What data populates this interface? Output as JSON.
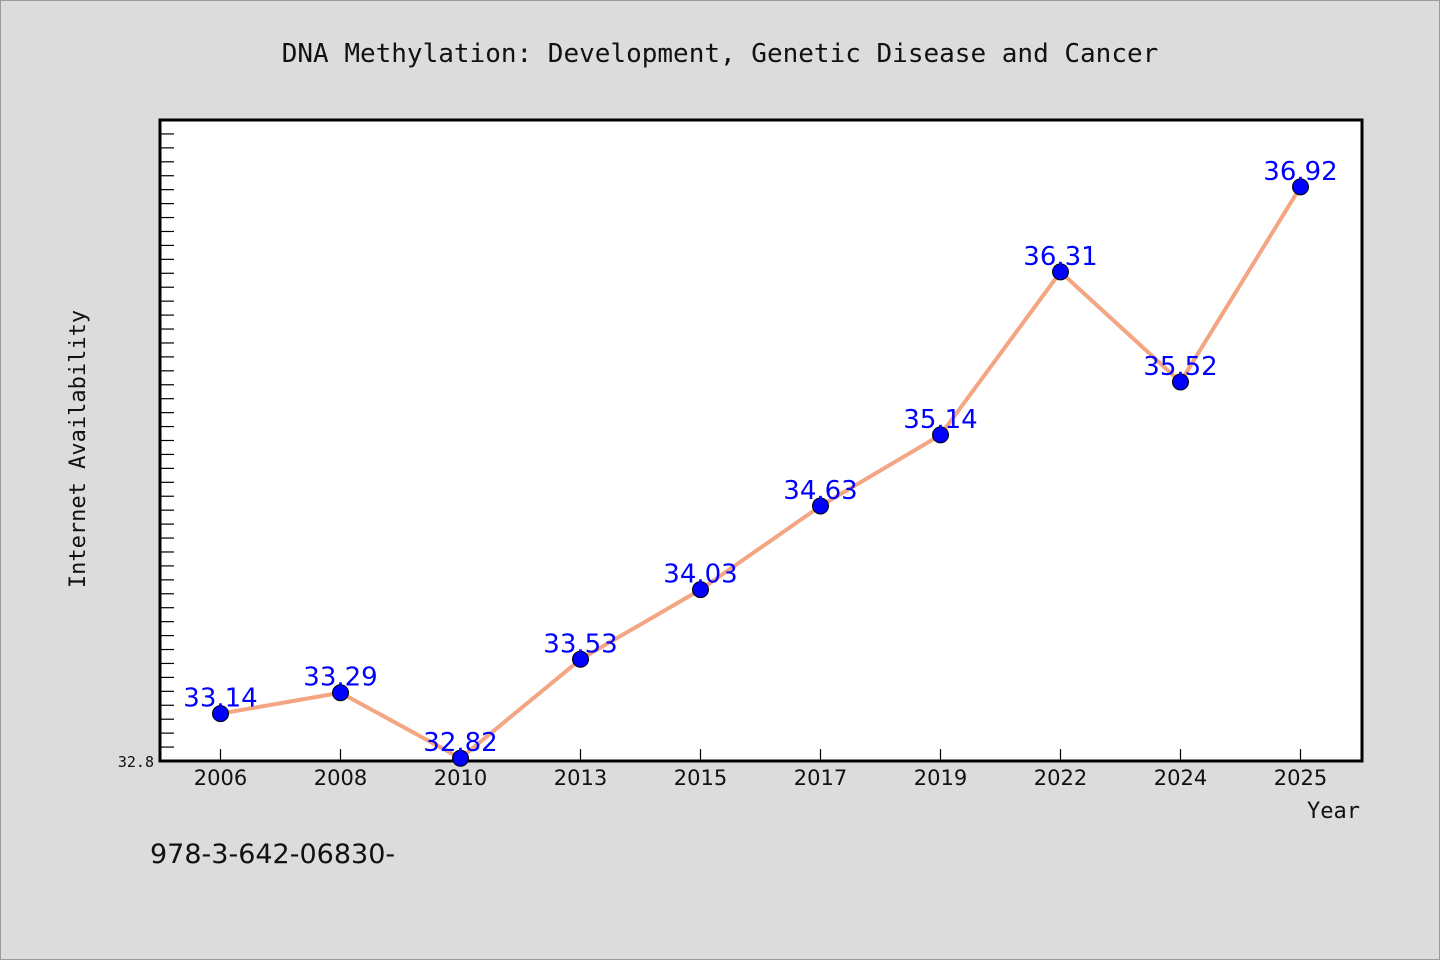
{
  "chart_data": {
    "type": "line",
    "title": "DNA Methylation: Development, Genetic Disease and Cancer",
    "xlabel": "Year",
    "ylabel": "Internet Availability",
    "categories": [
      "2006",
      "2008",
      "2010",
      "2013",
      "2015",
      "2017",
      "2019",
      "2022",
      "2024",
      "2025"
    ],
    "series": [
      {
        "values": [
          33.14,
          33.29,
          32.82,
          33.53,
          34.03,
          34.63,
          35.14,
          36.31,
          35.52,
          36.92
        ],
        "data_labels": [
          "33.14",
          "33.29",
          "32.82",
          "33.53",
          "34.03",
          "34.63",
          "35.14",
          "36.31",
          "35.52",
          "36.92"
        ]
      }
    ],
    "ylim": [
      32.8,
      37.4
    ],
    "y_tick_labels": [
      "32.8"
    ],
    "grid": false,
    "colors": {
      "line": "#f4a582",
      "marker": "#0000ff",
      "data_label": "#0000ff",
      "plot_bg": "#ffffff",
      "figure_bg": "#dcdcdc"
    }
  },
  "footer": {
    "isbn_text": "978-3-642-06830-"
  }
}
